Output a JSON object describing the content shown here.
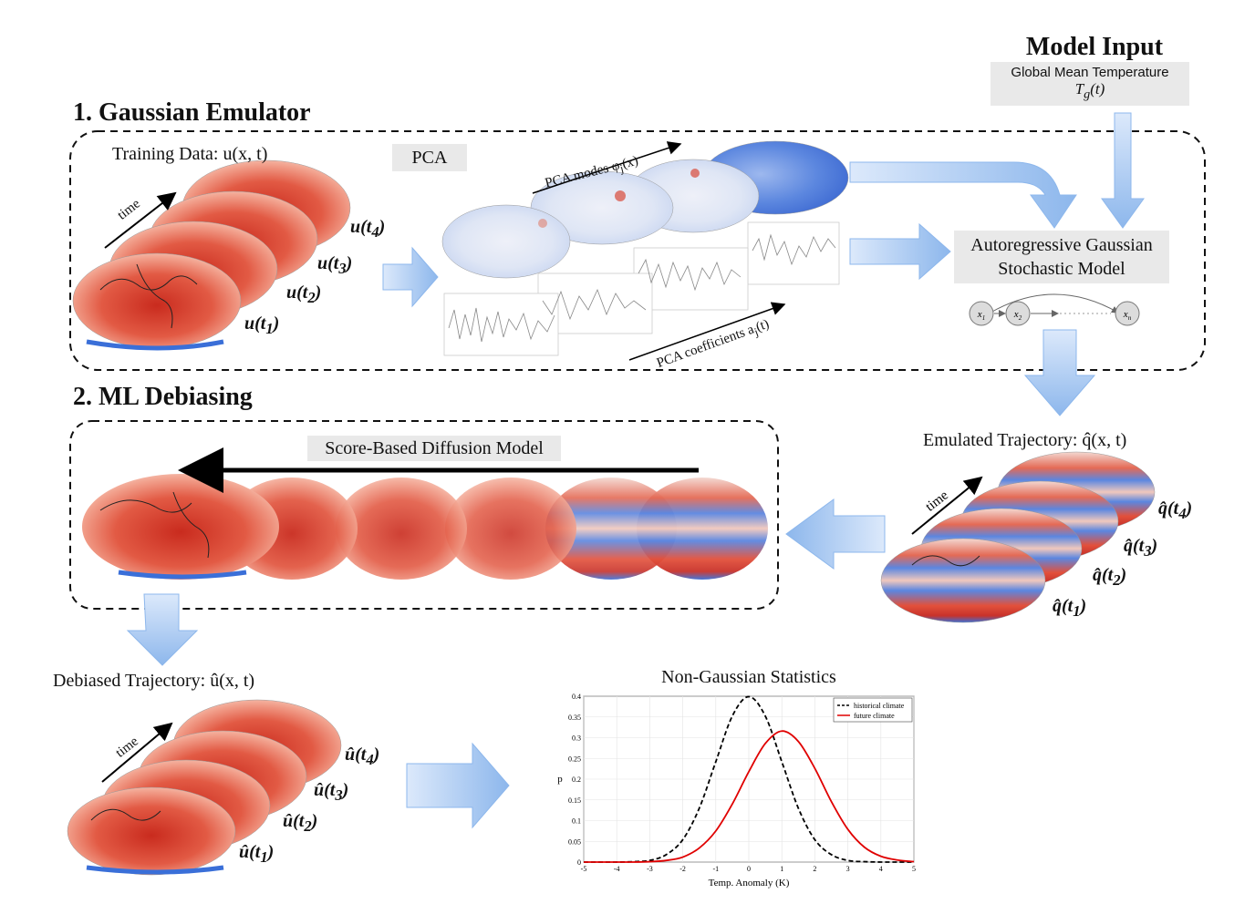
{
  "model_input": {
    "title": "Model Input",
    "box_line1": "Global  Mean Temperature",
    "box_line2": "T_g(t)"
  },
  "section1": {
    "title": "1. Gaussian Emulator"
  },
  "section2": {
    "title": "2. ML Debiasing"
  },
  "training": {
    "label": "Training Data: u(x, t)",
    "time_label": "time",
    "frame_labels": [
      "u(t4)",
      "u(t3)",
      "u(t2)",
      "u(t1)"
    ]
  },
  "pca": {
    "box_label": "PCA",
    "modes_label": "PCA modes φj(x)",
    "coeff_label": "PCA coefficients aj(t)"
  },
  "ar_model": {
    "line1": "Autoregressive Gaussian",
    "line2": "Stochastic Model",
    "nodes": [
      "x1",
      "x2",
      "xn"
    ]
  },
  "emulated": {
    "label": "Emulated Trajectory:  q̂(x, t)",
    "time_label": "time",
    "frame_labels": [
      "q̂(t4)",
      "q̂(t3)",
      "q̂(t2)",
      "q̂(t1)"
    ]
  },
  "diffusion": {
    "label": "Score-Based Diffusion Model"
  },
  "debiased": {
    "label": "Debiased Trajectory:  û(x, t)",
    "time_label": "time",
    "frame_labels": [
      "û(t4)",
      "û(t3)",
      "û(t2)",
      "û(t1)"
    ]
  },
  "colors": {
    "warm": "#d7301f",
    "cool": "#3a6fd8",
    "arrow": "#9cc0ee",
    "label_bg": "#e9e9e9"
  },
  "chart_data": {
    "type": "line",
    "title": "Non-Gaussian Statistics",
    "xlabel": "Temp. Anomaly (K)",
    "ylabel": "p",
    "xlim": [
      -5,
      5
    ],
    "ylim": [
      0,
      0.4
    ],
    "xticks": [
      -5,
      -4,
      -3,
      -2,
      -1,
      0,
      1,
      2,
      3,
      4,
      5
    ],
    "yticks": [
      0,
      0.05,
      0.1,
      0.15,
      0.2,
      0.25,
      0.3,
      0.35,
      0.4
    ],
    "grid": true,
    "legend_position": "top-right",
    "series": [
      {
        "name": "historical climate",
        "color": "#000000",
        "dash": true,
        "x": [
          -5,
          -4.5,
          -4,
          -3.5,
          -3,
          -2.5,
          -2,
          -1.5,
          -1,
          -0.5,
          0,
          0.5,
          1,
          1.5,
          2,
          2.5,
          3,
          3.5,
          4,
          4.5,
          5
        ],
        "y": [
          0,
          0,
          0,
          0.001,
          0.004,
          0.018,
          0.054,
          0.13,
          0.242,
          0.352,
          0.399,
          0.352,
          0.242,
          0.13,
          0.054,
          0.018,
          0.004,
          0.001,
          0,
          0,
          0
        ]
      },
      {
        "name": "future climate",
        "color": "#e00000",
        "dash": false,
        "x": [
          -5,
          -4.5,
          -4,
          -3.5,
          -3,
          -2.5,
          -2,
          -1.5,
          -1,
          -0.5,
          0,
          0.5,
          1,
          1.5,
          2,
          2.5,
          3,
          3.5,
          4,
          4.5,
          5
        ],
        "y": [
          0,
          0,
          0,
          0,
          0.001,
          0.004,
          0.012,
          0.034,
          0.075,
          0.14,
          0.218,
          0.286,
          0.316,
          0.291,
          0.226,
          0.146,
          0.079,
          0.036,
          0.014,
          0.005,
          0.001
        ]
      }
    ]
  }
}
